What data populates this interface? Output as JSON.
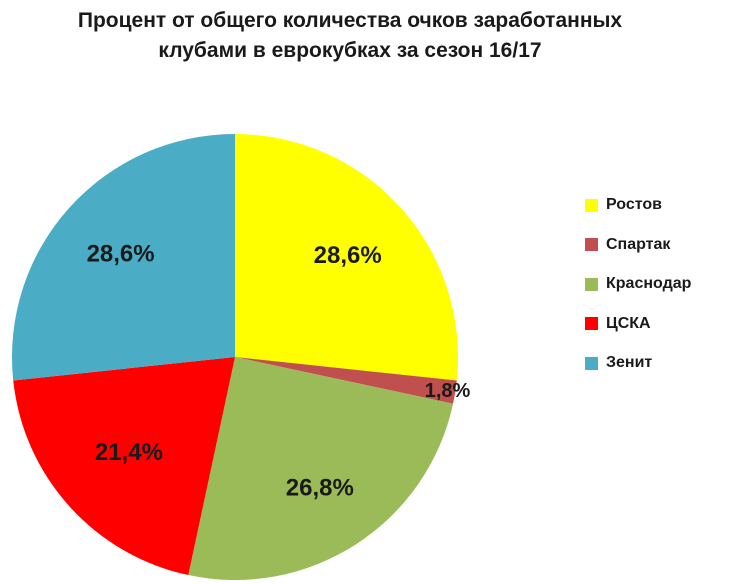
{
  "chart_data": {
    "type": "pie",
    "title_lines": [
      "Процент от общего количества очков заработанных",
      "клубами в еврокубках за сезон 16/17"
    ],
    "categories": [
      "Ростов",
      "Спартак",
      "Краснодар",
      "ЦСКА",
      "Зенит"
    ],
    "values": [
      28.6,
      1.8,
      26.8,
      21.4,
      28.6
    ],
    "labels": [
      "28,6%",
      "1,8%",
      "26,8%",
      "21,4%",
      "28,6%"
    ],
    "colors": [
      "#FFFF00",
      "#C0504D",
      "#9BBB59",
      "#FF0000",
      "#4BACC6"
    ],
    "legend_position": "right"
  }
}
